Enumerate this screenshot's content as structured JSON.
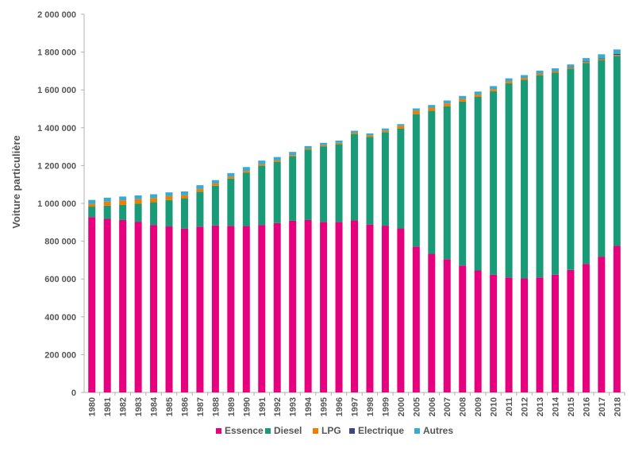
{
  "chart_data": {
    "type": "bar",
    "stacked": true,
    "title": "",
    "xlabel": "",
    "ylabel": "Voiture particulière",
    "ylim": [
      0,
      2000000
    ],
    "yticks": [
      0,
      200000,
      400000,
      600000,
      800000,
      1000000,
      1200000,
      1400000,
      1600000,
      1800000,
      2000000
    ],
    "ytick_labels": [
      "0",
      "200 000",
      "400 000",
      "600 000",
      "800 000",
      "1 000 000",
      "1 200 000",
      "1 400 000",
      "1 600 000",
      "1 800 000",
      "2 000 000"
    ],
    "grid": false,
    "legend_position": "bottom",
    "categories": [
      "1980",
      "1981",
      "1982",
      "1983",
      "1984",
      "1985",
      "1986",
      "1987",
      "1988",
      "1989",
      "1990",
      "1991",
      "1992",
      "1993",
      "1994",
      "1995",
      "1996",
      "1997",
      "1998",
      "1999",
      "2000",
      "2005",
      "2006",
      "2007",
      "2008",
      "2009",
      "2010",
      "2011",
      "2012",
      "2013",
      "2014",
      "2015",
      "2016",
      "2017",
      "2018"
    ],
    "series": [
      {
        "name": "Essence",
        "color": "#e6007e",
        "values": [
          928000,
          918000,
          912000,
          903000,
          886000,
          878000,
          867000,
          877000,
          883000,
          881000,
          880000,
          886000,
          896000,
          908000,
          912000,
          902000,
          902000,
          910000,
          888000,
          882000,
          868000,
          772000,
          733000,
          705000,
          671000,
          645000,
          623000,
          608000,
          603000,
          608000,
          623000,
          648000,
          680000,
          718000,
          775000
        ]
      },
      {
        "name": "Diesel",
        "color": "#1a9b78",
        "values": [
          55000,
          70000,
          80000,
          95000,
          120000,
          140000,
          160000,
          185000,
          210000,
          250000,
          282000,
          313000,
          324000,
          340000,
          372000,
          400000,
          412000,
          457000,
          464000,
          495000,
          527000,
          700000,
          757000,
          808000,
          867000,
          918000,
          970000,
          1027000,
          1050000,
          1070000,
          1068000,
          1065000,
          1063000,
          1040000,
          1005000
        ]
      },
      {
        "name": "LPG",
        "color": "#ef7d00",
        "values": [
          13000,
          21000,
          24000,
          24000,
          22000,
          20000,
          16000,
          14000,
          12000,
          10000,
          9000,
          8000,
          7000,
          7000,
          6000,
          6000,
          6000,
          7000,
          8000,
          8000,
          15000,
          18000,
          16000,
          15000,
          14000,
          12000,
          11000,
          10000,
          10000,
          8000,
          7000,
          6000,
          5000,
          5000,
          5000
        ]
      },
      {
        "name": "Electrique",
        "color": "#3d4587",
        "values": [
          200,
          200,
          200,
          200,
          200,
          200,
          200,
          200,
          200,
          200,
          200,
          200,
          200,
          200,
          200,
          200,
          200,
          200,
          200,
          200,
          200,
          200,
          200,
          200,
          200,
          300,
          300,
          400,
          500,
          800,
          1200,
          1800,
          2500,
          3500,
          5000
        ]
      },
      {
        "name": "Autres",
        "color": "#3aaacf",
        "values": [
          22000,
          21000,
          20000,
          20000,
          20000,
          20000,
          20000,
          20000,
          18000,
          19000,
          21000,
          19000,
          18000,
          17000,
          13000,
          12000,
          12000,
          10000,
          10000,
          11000,
          9000,
          12000,
          14000,
          16000,
          16000,
          16000,
          16000,
          16000,
          15000,
          15000,
          15000,
          14000,
          18000,
          22000,
          24000
        ]
      }
    ]
  }
}
